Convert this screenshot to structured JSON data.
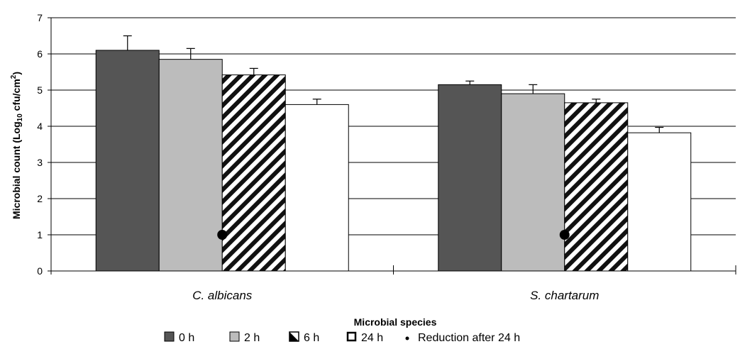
{
  "chart_data": {
    "type": "bar",
    "categories": [
      "C. albicans",
      "S. chartarum"
    ],
    "series": [
      {
        "name": "0 h",
        "values": [
          6.1,
          5.15
        ],
        "errors": [
          0.4,
          0.1
        ],
        "color": "#555555",
        "pattern": "solid"
      },
      {
        "name": "2 h",
        "values": [
          5.85,
          4.9
        ],
        "errors": [
          0.3,
          0.25
        ],
        "color": "#bcbcbc",
        "pattern": "solid"
      },
      {
        "name": "6 h",
        "values": [
          5.42,
          4.65
        ],
        "errors": [
          0.18,
          0.1
        ],
        "color": "#ffffff",
        "pattern": "diagonal-stripes"
      },
      {
        "name": "24 h",
        "values": [
          4.6,
          3.82
        ],
        "errors": [
          0.15,
          0.15
        ],
        "color": "#ffffff",
        "pattern": "outline"
      }
    ],
    "markers": {
      "name": "Reduction after 24 h",
      "values": [
        1.0,
        1.0
      ],
      "color": "#000000"
    },
    "xlabel": "Microbial species",
    "ylabel_parts": {
      "pre": "Microbial count (Log",
      "sub": "10",
      "mid": " cfu/cm",
      "sup": "2",
      "post": ")"
    },
    "ylim": [
      0,
      7
    ],
    "yticks": [
      0,
      1,
      2,
      3,
      4,
      5,
      6,
      7
    ],
    "grid": true,
    "legend_position": "bottom"
  }
}
